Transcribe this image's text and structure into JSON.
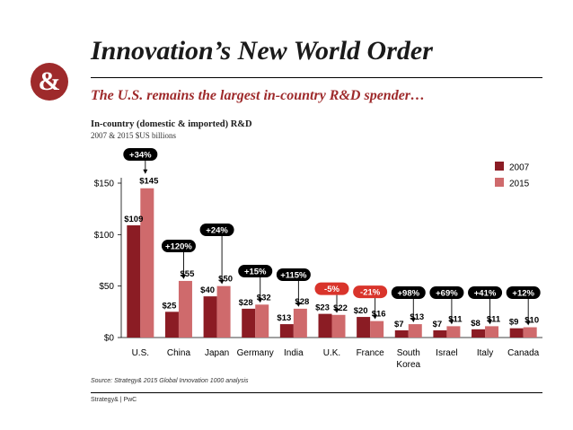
{
  "slide": {
    "logo_text": "&",
    "title": "Innovation’s New World Order",
    "subtitle": "The U.S. remains the largest in-country R&D spender…",
    "accent_color": "#9e2a2b",
    "source": "Source: Strategy& 2015 Global Innovation 1000 analysis",
    "footer": "Strategy& | PwC"
  },
  "chart_data": {
    "type": "bar",
    "title": "In-country (domestic & imported) R&D",
    "subtitle": "2007 & 2015 $US billions",
    "categories": [
      "U.S.",
      "China",
      "Japan",
      "Germany",
      "India",
      "U.K.",
      "France",
      "South Korea",
      "Israel",
      "Italy",
      "Canada"
    ],
    "series": [
      {
        "name": "2007",
        "color": "#8b1c24",
        "values": [
          109,
          25,
          40,
          28,
          13,
          23,
          20,
          7,
          7,
          8,
          9
        ]
      },
      {
        "name": "2015",
        "color": "#cf6a6c",
        "values": [
          145,
          55,
          50,
          32,
          28,
          22,
          16,
          13,
          11,
          11,
          10
        ]
      }
    ],
    "changes": [
      "+34%",
      "+120%",
      "+24%",
      "+15%",
      "+115%",
      "-5%",
      "-21%",
      "+98%",
      "+69%",
      "+41%",
      "+12%"
    ],
    "change_colors": {
      "positive": "#000000",
      "negative": "#d9342b"
    },
    "value_prefix": "$",
    "yticks": [
      0,
      50,
      100,
      150
    ],
    "ytick_labels": [
      "$0",
      "$50",
      "$100",
      "$150"
    ],
    "ylim": [
      0,
      150
    ],
    "xlabel": "",
    "ylabel": "",
    "legend_position": "top-right",
    "grid": false
  }
}
